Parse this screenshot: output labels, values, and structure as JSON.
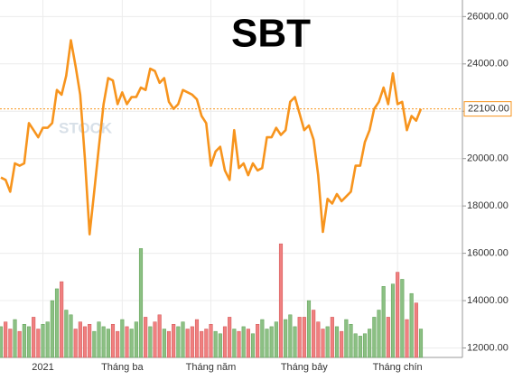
{
  "chart_data": {
    "type": "stock",
    "title": "SBT",
    "watermark": "STOCK",
    "categories": [
      null,
      null,
      null,
      null,
      null,
      null,
      null,
      null,
      null,
      "2021",
      null,
      null,
      null,
      null,
      null,
      null,
      null,
      null,
      null,
      null,
      null,
      null,
      null,
      null,
      null,
      null,
      "Tháng ba",
      null,
      null,
      null,
      null,
      null,
      null,
      null,
      null,
      null,
      null,
      null,
      null,
      null,
      null,
      null,
      null,
      null,
      null,
      "Tháng năm",
      null,
      null,
      null,
      null,
      null,
      null,
      null,
      null,
      null,
      null,
      null,
      null,
      null,
      null,
      null,
      null,
      null,
      null,
      null,
      "Tháng bảy",
      null,
      null,
      null,
      null,
      null,
      null,
      null,
      null,
      null,
      null,
      null,
      null,
      null,
      null,
      null,
      null,
      null,
      null,
      null,
      "Tháng chín",
      null,
      null,
      null,
      null,
      null
    ],
    "series": [
      {
        "type": "line",
        "color": "#f7941d",
        "values": [
          19200,
          19100,
          18600,
          19800,
          19700,
          19800,
          21500,
          21200,
          20900,
          21300,
          21300,
          21500,
          22900,
          22700,
          23500,
          25000,
          23900,
          22700,
          20000,
          16800,
          18600,
          20500,
          22300,
          23400,
          23300,
          22300,
          22800,
          22300,
          22600,
          22600,
          23000,
          22900,
          23800,
          23700,
          23200,
          23400,
          22400,
          22100,
          22300,
          22900,
          22800,
          22700,
          22500,
          21800,
          21500,
          19700,
          20300,
          20500,
          19500,
          19100,
          21200,
          19600,
          19800,
          19300,
          19800,
          19500,
          19600,
          20900,
          20900,
          21300,
          21000,
          21200,
          22400,
          22600,
          21900,
          21200,
          21400,
          20800,
          19300,
          16900,
          18300,
          18100,
          18500,
          18200,
          18400,
          18600,
          19700,
          19700,
          20700,
          21200,
          22100,
          22400,
          23000,
          22300,
          23600,
          22300,
          22400,
          21200,
          21800,
          21600,
          22100
        ]
      },
      {
        "type": "volume",
        "up_color": "#8cc084",
        "down_color": "#f08080",
        "values": [
          12900,
          13100,
          12800,
          13200,
          12700,
          13000,
          12900,
          13300,
          12800,
          13000,
          13100,
          14000,
          14500,
          14800,
          13600,
          13400,
          12800,
          13100,
          12900,
          13000,
          12700,
          13100,
          12900,
          12800,
          13000,
          12700,
          13200,
          12900,
          12800,
          13100,
          16200,
          13300,
          12900,
          13100,
          13400,
          12800,
          12700,
          13000,
          12900,
          13100,
          12800,
          12900,
          13200,
          12700,
          12800,
          13000,
          12700,
          12600,
          12900,
          13300,
          12800,
          12700,
          12900,
          12800,
          12600,
          13000,
          13200,
          12800,
          12900,
          13100,
          16400,
          13200,
          13400,
          12900,
          13300,
          13300,
          14000,
          13600,
          13100,
          12800,
          12900,
          13300,
          12900,
          12700,
          13200,
          13000,
          12600,
          12500,
          12600,
          12800,
          13300,
          13600,
          14600,
          13300,
          14700,
          15200,
          14900,
          13200,
          14300,
          13900,
          12800
        ]
      }
    ],
    "last_price": {
      "value": 22100,
      "label": "22100.00"
    },
    "ylim": [
      11600,
      26700
    ],
    "yticks": [
      {
        "value": 12000,
        "label": "12000.00"
      },
      {
        "value": 14000,
        "label": "14000.00"
      },
      {
        "value": 16000,
        "label": "16000.00"
      },
      {
        "value": 18000,
        "label": "18000.00"
      },
      {
        "value": 20000,
        "label": "20000.00"
      },
      {
        "value": 22000,
        "label": "22000.00"
      },
      {
        "value": 24000,
        "label": "24000.00"
      },
      {
        "value": 26000,
        "label": "26000.00"
      }
    ],
    "grid": true
  }
}
